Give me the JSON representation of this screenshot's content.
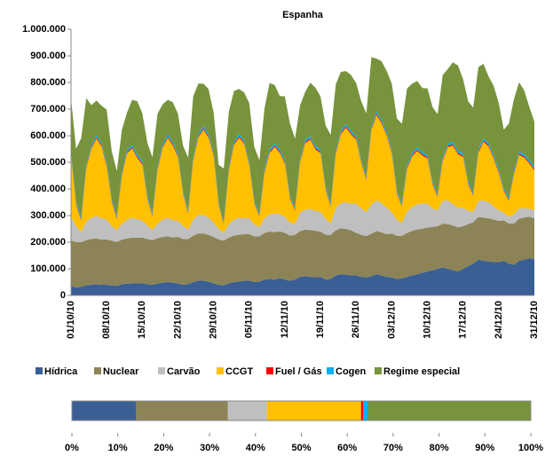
{
  "chart_data": [
    {
      "type": "stacked-area",
      "title": "Espanha",
      "categories": [
        "01/10/10",
        null,
        null,
        null,
        null,
        null,
        null,
        "08/10/10",
        null,
        null,
        null,
        null,
        null,
        null,
        "15/10/10",
        null,
        null,
        null,
        null,
        null,
        null,
        "22/10/10",
        null,
        null,
        null,
        null,
        null,
        null,
        "29/10/10",
        null,
        null,
        null,
        null,
        null,
        null,
        "05/11/10",
        null,
        null,
        null,
        null,
        null,
        null,
        "12/11/10",
        null,
        null,
        null,
        null,
        null,
        null,
        "19/11/10",
        null,
        null,
        null,
        null,
        null,
        null,
        "26/11/10",
        null,
        null,
        null,
        null,
        null,
        null,
        "03/12/10",
        null,
        null,
        null,
        null,
        null,
        null,
        "10/12/10",
        null,
        null,
        null,
        null,
        null,
        null,
        "17/12/10",
        null,
        null,
        null,
        null,
        null,
        null,
        "24/12/10",
        null,
        null,
        null,
        null,
        null,
        null,
        "31/12/10"
      ],
      "ylim": [
        0,
        1000000
      ],
      "yticks": [
        0,
        {
          "value": 100000,
          "label": "100.000"
        },
        {
          "value": 200000,
          "label": "200.000"
        },
        {
          "value": 300000,
          "label": "300.000"
        },
        {
          "value": 400000,
          "label": "400.000"
        },
        {
          "value": 500000,
          "label": "500.000"
        },
        {
          "value": 600000,
          "label": "600.000"
        },
        {
          "value": 700000,
          "label": "700.000"
        },
        {
          "value": 800000,
          "label": "800.000"
        },
        {
          "value": 900000,
          "label": "900.000"
        },
        {
          "value": 1000000,
          "label": "1.000.000"
        }
      ],
      "series": [
        {
          "name": "Hídrica",
          "color": "#3a5f94",
          "values": [
            35000,
            30000,
            32000,
            38000,
            40000,
            42000,
            40000,
            40000,
            38000,
            36000,
            42000,
            44000,
            45000,
            45000,
            45000,
            42000,
            40000,
            45000,
            48000,
            50000,
            48000,
            45000,
            40000,
            42000,
            50000,
            55000,
            55000,
            52000,
            45000,
            40000,
            38000,
            45000,
            50000,
            52000,
            55000,
            55000,
            50000,
            52000,
            60000,
            62000,
            60000,
            65000,
            60000,
            55000,
            60000,
            70000,
            72000,
            70000,
            68000,
            70000,
            60000,
            62000,
            75000,
            80000,
            78000,
            75000,
            75000,
            70000,
            68000,
            72000,
            80000,
            75000,
            70000,
            68000,
            62000,
            64000,
            70000,
            75000,
            80000,
            85000,
            90000,
            95000,
            100000,
            105000,
            100000,
            95000,
            90000,
            100000,
            110000,
            120000,
            135000,
            130000,
            128000,
            125000,
            125000,
            130000,
            120000,
            115000,
            130000,
            135000,
            140000,
            135000
          ]
        },
        {
          "name": "Nuclear",
          "color": "#8c8457",
          "values": [
            172000,
            170000,
            168000,
            170000,
            172000,
            172000,
            170000,
            170000,
            168000,
            165000,
            168000,
            170000,
            172000,
            172000,
            172000,
            170000,
            168000,
            170000,
            172000,
            172000,
            170000,
            175000,
            172000,
            170000,
            175000,
            178000,
            178000,
            176000,
            175000,
            170000,
            168000,
            172000,
            175000,
            176000,
            175000,
            175000,
            172000,
            170000,
            175000,
            178000,
            178000,
            176000,
            175000,
            170000,
            168000,
            172000,
            175000,
            176000,
            175000,
            170000,
            168000,
            165000,
            170000,
            172000,
            172000,
            170000,
            160000,
            158000,
            155000,
            160000,
            162000,
            162000,
            160000,
            165000,
            162000,
            160000,
            165000,
            168000,
            168000,
            166000,
            165000,
            162000,
            160000,
            165000,
            168000,
            168000,
            166000,
            160000,
            158000,
            155000,
            160000,
            162000,
            162000,
            160000,
            155000,
            152000,
            150000,
            155000,
            158000,
            158000,
            156000,
            155000
          ]
        },
        {
          "name": "Carvão",
          "color": "#bfbfbf",
          "values": [
            90000,
            60000,
            40000,
            70000,
            80000,
            85000,
            80000,
            75000,
            55000,
            45000,
            60000,
            70000,
            75000,
            70000,
            65000,
            50000,
            40000,
            55000,
            65000,
            70000,
            65000,
            60000,
            50000,
            35000,
            60000,
            70000,
            70000,
            65000,
            55000,
            40000,
            30000,
            50000,
            60000,
            65000,
            60000,
            60000,
            45000,
            35000,
            55000,
            65000,
            70000,
            65000,
            60000,
            50000,
            40000,
            70000,
            75000,
            80000,
            75000,
            75000,
            60000,
            45000,
            85000,
            95000,
            100000,
            100000,
            110000,
            100000,
            90000,
            110000,
            115000,
            110000,
            100000,
            80000,
            60000,
            50000,
            80000,
            90000,
            95000,
            95000,
            90000,
            70000,
            60000,
            85000,
            90000,
            80000,
            75000,
            70000,
            50000,
            40000,
            60000,
            65000,
            60000,
            50000,
            40000,
            30000,
            25000,
            35000,
            40000,
            35000,
            30000,
            30000
          ]
        },
        {
          "name": "CCGT",
          "color": "#ffc000",
          "values": [
            230000,
            80000,
            40000,
            200000,
            260000,
            290000,
            270000,
            200000,
            90000,
            40000,
            180000,
            250000,
            260000,
            230000,
            210000,
            100000,
            50000,
            200000,
            270000,
            300000,
            280000,
            240000,
            120000,
            60000,
            220000,
            290000,
            320000,
            300000,
            250000,
            90000,
            30000,
            200000,
            280000,
            300000,
            280000,
            200000,
            80000,
            40000,
            170000,
            230000,
            250000,
            230000,
            200000,
            90000,
            50000,
            190000,
            250000,
            260000,
            230000,
            220000,
            110000,
            60000,
            200000,
            260000,
            280000,
            260000,
            240000,
            170000,
            120000,
            280000,
            320000,
            300000,
            270000,
            220000,
            100000,
            60000,
            160000,
            190000,
            200000,
            180000,
            170000,
            90000,
            50000,
            150000,
            200000,
            220000,
            200000,
            190000,
            100000,
            60000,
            180000,
            220000,
            210000,
            180000,
            140000,
            80000,
            60000,
            150000,
            200000,
            190000,
            170000,
            150000
          ]
        },
        {
          "name": "Fuel / Gás",
          "color": "#ff0000",
          "values": [
            5000,
            4000,
            4000,
            5000,
            5000,
            5000,
            5000,
            5000,
            4000,
            4000,
            5000,
            5000,
            5000,
            5000,
            5000,
            4000,
            4000,
            5000,
            5000,
            5000,
            5000,
            5000,
            4000,
            4000,
            5000,
            5000,
            5000,
            5000,
            5000,
            4000,
            4000,
            5000,
            5000,
            5000,
            5000,
            5000,
            4000,
            4000,
            5000,
            5000,
            5000,
            5000,
            5000,
            4000,
            4000,
            5000,
            5000,
            5000,
            5000,
            5000,
            4000,
            4000,
            5000,
            5000,
            5000,
            5000,
            5000,
            4000,
            4000,
            5000,
            5000,
            5000,
            5000,
            5000,
            4000,
            4000,
            5000,
            5000,
            5000,
            5000,
            5000,
            4000,
            4000,
            5000,
            5000,
            5000,
            5000,
            5000,
            4000,
            4000,
            5000,
            5000,
            5000,
            5000,
            5000,
            4000,
            4000,
            5000,
            5000,
            5000,
            5000,
            5000
          ]
        },
        {
          "name": "Cogen",
          "color": "#00b0f0",
          "values": [
            8000,
            7000,
            7000,
            8000,
            8000,
            8000,
            8000,
            8000,
            7000,
            7000,
            8000,
            8000,
            8000,
            8000,
            8000,
            7000,
            7000,
            8000,
            8000,
            8000,
            8000,
            8000,
            7000,
            7000,
            8000,
            8000,
            8000,
            8000,
            8000,
            7000,
            7000,
            8000,
            8000,
            8000,
            8000,
            8000,
            7000,
            7000,
            8000,
            8000,
            8000,
            8000,
            8000,
            7000,
            7000,
            8000,
            8000,
            8000,
            8000,
            8000,
            7000,
            7000,
            8000,
            8000,
            8000,
            8000,
            8000,
            7000,
            7000,
            8000,
            8000,
            8000,
            8000,
            8000,
            7000,
            7000,
            8000,
            8000,
            8000,
            8000,
            8000,
            7000,
            7000,
            8000,
            8000,
            8000,
            8000,
            8000,
            7000,
            7000,
            8000,
            8000,
            8000,
            8000,
            8000,
            7000,
            7000,
            8000,
            8000,
            8000,
            8000,
            8000
          ]
        },
        {
          "name": "Regime especial",
          "color": "#77933c",
          "values": [
            200000,
            200000,
            300000,
            250000,
            150000,
            130000,
            140000,
            200000,
            180000,
            170000,
            160000,
            140000,
            170000,
            200000,
            180000,
            200000,
            210000,
            200000,
            150000,
            130000,
            150000,
            150000,
            170000,
            200000,
            230000,
            190000,
            160000,
            170000,
            150000,
            140000,
            200000,
            210000,
            190000,
            170000,
            180000,
            220000,
            200000,
            200000,
            230000,
            250000,
            220000,
            200000,
            240000,
            270000,
            260000,
            200000,
            180000,
            200000,
            220000,
            200000,
            230000,
            260000,
            250000,
            220000,
            200000,
            210000,
            200000,
            220000,
            240000,
            260000,
            200000,
            220000,
            230000,
            250000,
            270000,
            300000,
            290000,
            260000,
            250000,
            240000,
            250000,
            280000,
            300000,
            310000,
            280000,
            300000,
            320000,
            280000,
            300000,
            320000,
            310000,
            280000,
            250000,
            260000,
            250000,
            220000,
            280000,
            270000,
            260000,
            240000,
            200000,
            170000
          ]
        }
      ]
    },
    {
      "type": "stacked-hbar",
      "orientation": "horizontal",
      "xlim": [
        0,
        100
      ],
      "xticks": [
        {
          "value": 0,
          "label": "0%"
        },
        {
          "value": 10,
          "label": "10%"
        },
        {
          "value": 20,
          "label": "20%"
        },
        {
          "value": 30,
          "label": "30%"
        },
        {
          "value": 40,
          "label": "40%"
        },
        {
          "value": 50,
          "label": "50%"
        },
        {
          "value": 60,
          "label": "60%"
        },
        {
          "value": 70,
          "label": "70%"
        },
        {
          "value": 80,
          "label": "80%"
        },
        {
          "value": 90,
          "label": "90%"
        },
        {
          "value": 100,
          "label": "100%"
        }
      ],
      "series": [
        {
          "color": "#3a5f94",
          "values": [
            14
          ]
        },
        {
          "color": "#8c8457",
          "values": [
            20
          ]
        },
        {
          "color": "#bfbfbf",
          "values": [
            8.5
          ]
        },
        {
          "color": "#ffc000",
          "values": [
            20.5
          ]
        },
        {
          "color": "#ff0000",
          "values": [
            0.5
          ]
        },
        {
          "color": "#00b0f0",
          "values": [
            1
          ]
        },
        {
          "color": "#77933c",
          "values": [
            35.5
          ]
        }
      ]
    }
  ]
}
